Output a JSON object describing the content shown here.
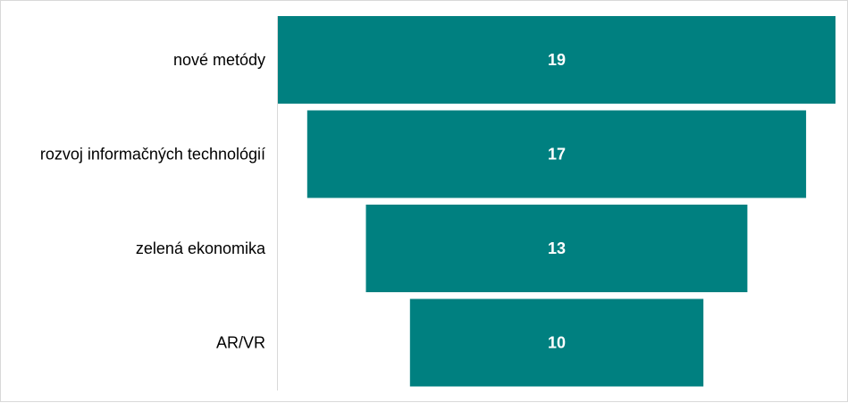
{
  "chart_data": {
    "type": "bar",
    "orientation": "horizontal-funnel",
    "title": "",
    "xlabel": "",
    "ylabel": "",
    "categories": [
      "nové metódy",
      "rozvoj informačných technológií",
      "zelená ekonomika",
      "AR/VR"
    ],
    "values": [
      19,
      17,
      13,
      10
    ],
    "grid": false,
    "legend": "none",
    "colors": {
      "bar": "#008080",
      "axis": "#d9d9d9",
      "value_text": "#ffffff",
      "category_text": "#000000"
    }
  }
}
